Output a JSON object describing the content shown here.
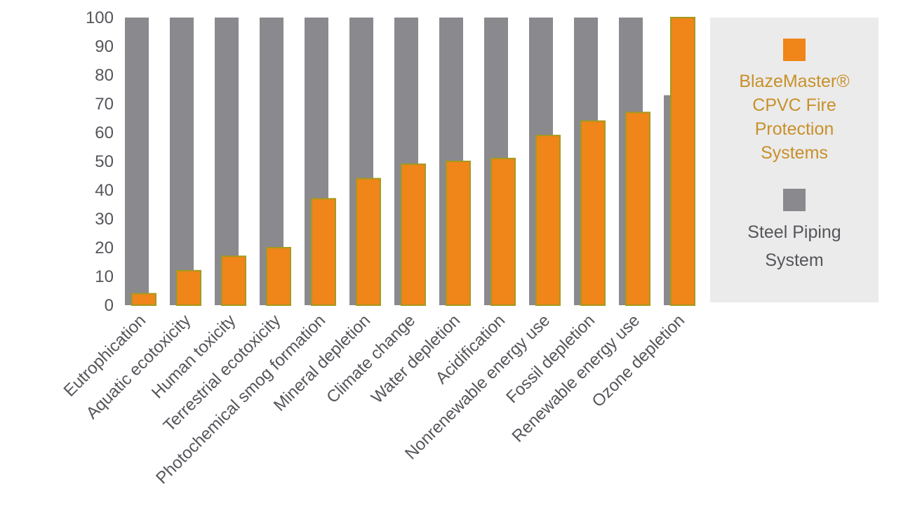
{
  "chart_data": {
    "type": "bar",
    "categories": [
      "Eutrophication",
      "Aquatic ecotoxicity",
      "Human toxicity",
      "Terrestrial ecotoxicity",
      "Photochemical smog formation",
      "Mineral depletion",
      "Climate change",
      "Water depletion",
      "Acidification",
      "Nonrenewable energy use",
      "Fossil depletion",
      "Renewable energy use",
      "Ozone depletion"
    ],
    "series": [
      {
        "name": "Steel Piping System",
        "color": "#8a898e",
        "values": [
          100,
          100,
          100,
          100,
          100,
          100,
          100,
          100,
          100,
          100,
          100,
          100,
          73
        ]
      },
      {
        "name": "BlazeMaster® CPVC Fire Protection Systems",
        "color": "#f08519",
        "values": [
          4,
          12,
          17,
          20,
          37,
          44,
          49,
          50,
          51,
          59,
          64,
          67,
          100
        ]
      }
    ],
    "ylim": [
      0,
      100
    ],
    "yticks": [
      "0",
      "10",
      "20",
      "30",
      "40",
      "50",
      "60",
      "70",
      "80",
      "90",
      "100"
    ],
    "title": "",
    "xlabel": "",
    "ylabel": "",
    "grid": false,
    "legend_position": "right"
  },
  "legend": {
    "items": [
      {
        "label": "BlazeMaster® CPVC Fire Protection Systems",
        "swatch_color": "#f08519",
        "text_color": "#c8902a"
      },
      {
        "label": "Steel Piping System",
        "swatch_color": "#8a898e",
        "text_color": "#55565a"
      }
    ]
  }
}
